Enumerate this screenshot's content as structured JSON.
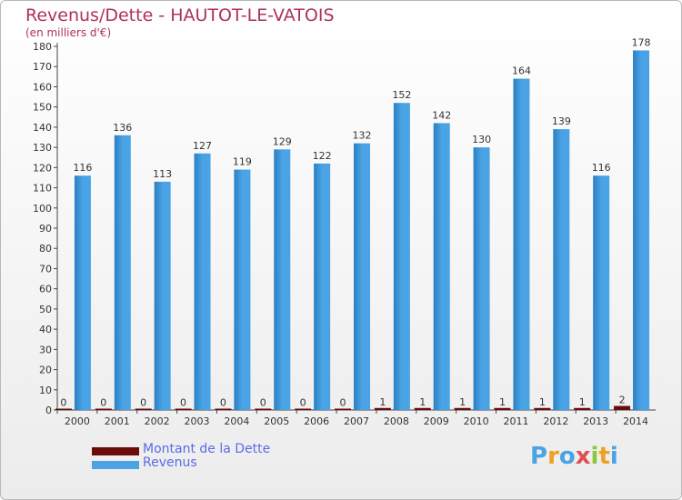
{
  "title": "Revenus/Dette - HAUTOT-LE-VATOIS",
  "subtitle": "(en milliers d'€)",
  "colors": {
    "debt": "#6b0b0b",
    "revenue": "#4aa3e4",
    "revenue_dark": "#2a7fc2",
    "title": "#b0305e"
  },
  "logo": {
    "letters": [
      "P",
      "r",
      "o",
      "x",
      "i",
      "t",
      "i"
    ],
    "colors": [
      "#4aa3e4",
      "#f0a020",
      "#4aa3e4",
      "#e05050",
      "#8cc63f",
      "#f0a020",
      "#4aa3e4"
    ]
  },
  "chart_data": {
    "type": "bar",
    "title": "Revenus/Dette - HAUTOT-LE-VATOIS",
    "subtitle": "(en milliers d'€)",
    "categories": [
      "2000",
      "2001",
      "2002",
      "2003",
      "2004",
      "2005",
      "2006",
      "2007",
      "2008",
      "2009",
      "2010",
      "2011",
      "2012",
      "2013",
      "2014"
    ],
    "series": [
      {
        "name": "Montant de la Dette",
        "color": "#6b0b0b",
        "values": [
          0,
          0,
          0,
          0,
          0,
          0,
          0,
          0,
          1,
          1,
          1,
          1,
          1,
          1,
          2
        ]
      },
      {
        "name": "Revenus",
        "color": "#4aa3e4",
        "values": [
          116,
          136,
          113,
          127,
          119,
          129,
          122,
          132,
          152,
          142,
          130,
          164,
          139,
          116,
          178
        ]
      }
    ],
    "ylim": [
      0,
      180
    ],
    "yticks": [
      0,
      10,
      20,
      30,
      40,
      50,
      60,
      70,
      80,
      90,
      100,
      110,
      120,
      130,
      140,
      150,
      160,
      170,
      180
    ],
    "grid": false,
    "legend": "bottom-left"
  }
}
